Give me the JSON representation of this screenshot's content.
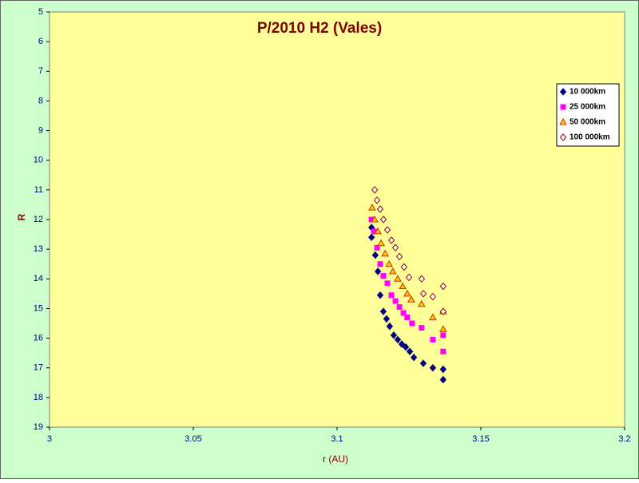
{
  "chart_data": {
    "type": "scatter",
    "title": "P/2010 H2 (Vales)",
    "x_label": "r (AU)",
    "y_label": "R",
    "xlim": [
      3,
      3.2
    ],
    "xticks": [
      3,
      3.05,
      3.1,
      3.15,
      3.2
    ],
    "ylim": [
      5,
      19
    ],
    "yticks": [
      5,
      6,
      7,
      8,
      9,
      10,
      11,
      12,
      13,
      14,
      15,
      16,
      17,
      18,
      19
    ],
    "y_inverted": true,
    "legend": "top-right",
    "series": [
      {
        "name": "10 000km",
        "marker": "diamond",
        "color": "#000080",
        "fill": "#000080",
        "x": [
          3.112,
          3.112,
          3.1133,
          3.1142,
          3.115,
          3.1161,
          3.1172,
          3.1183,
          3.1197,
          3.1211,
          3.1225,
          3.1239,
          3.1253,
          3.1267,
          3.13,
          3.1333,
          3.1369,
          3.1369
        ],
        "values": [
          12.27,
          12.6,
          13.2,
          13.75,
          14.55,
          15.1,
          15.35,
          15.6,
          15.9,
          16.05,
          16.2,
          16.3,
          16.45,
          16.65,
          16.85,
          17.0,
          17.05,
          17.4
        ]
      },
      {
        "name": "25 000km",
        "marker": "square",
        "color": "#ff00ff",
        "fill": "#ff00ff",
        "x": [
          3.112,
          3.1128,
          3.1139,
          3.115,
          3.1161,
          3.1175,
          3.1189,
          3.1203,
          3.1217,
          3.1231,
          3.1244,
          3.1261,
          3.1294,
          3.1333,
          3.1369,
          3.1369
        ],
        "values": [
          12.0,
          12.4,
          12.95,
          13.5,
          13.9,
          14.15,
          14.55,
          14.75,
          14.95,
          15.15,
          15.3,
          15.5,
          15.65,
          16.05,
          15.9,
          16.45
        ]
      },
      {
        "name": "50 000km",
        "marker": "triangle",
        "color": "#cc3300",
        "fill": "#ffcc00",
        "x": [
          3.1122,
          3.1131,
          3.1142,
          3.1153,
          3.1167,
          3.1181,
          3.1194,
          3.1211,
          3.1228,
          3.1244,
          3.1258,
          3.1294,
          3.1333,
          3.1369,
          3.1369
        ],
        "values": [
          11.6,
          12.0,
          12.4,
          12.8,
          13.15,
          13.5,
          13.75,
          14.0,
          14.25,
          14.5,
          14.7,
          14.85,
          15.3,
          15.1,
          15.7
        ]
      },
      {
        "name": "100 000km",
        "marker": "diamond",
        "color": "#990000",
        "fill": "#ffffff",
        "x": [
          3.1131,
          3.1139,
          3.115,
          3.1161,
          3.1175,
          3.1189,
          3.1203,
          3.1217,
          3.1233,
          3.125,
          3.1294,
          3.13,
          3.1333,
          3.1369,
          3.1369
        ],
        "values": [
          11.0,
          11.35,
          11.65,
          12.0,
          12.35,
          12.7,
          12.95,
          13.25,
          13.6,
          13.95,
          14.0,
          14.5,
          14.6,
          14.25,
          15.1
        ]
      }
    ]
  }
}
